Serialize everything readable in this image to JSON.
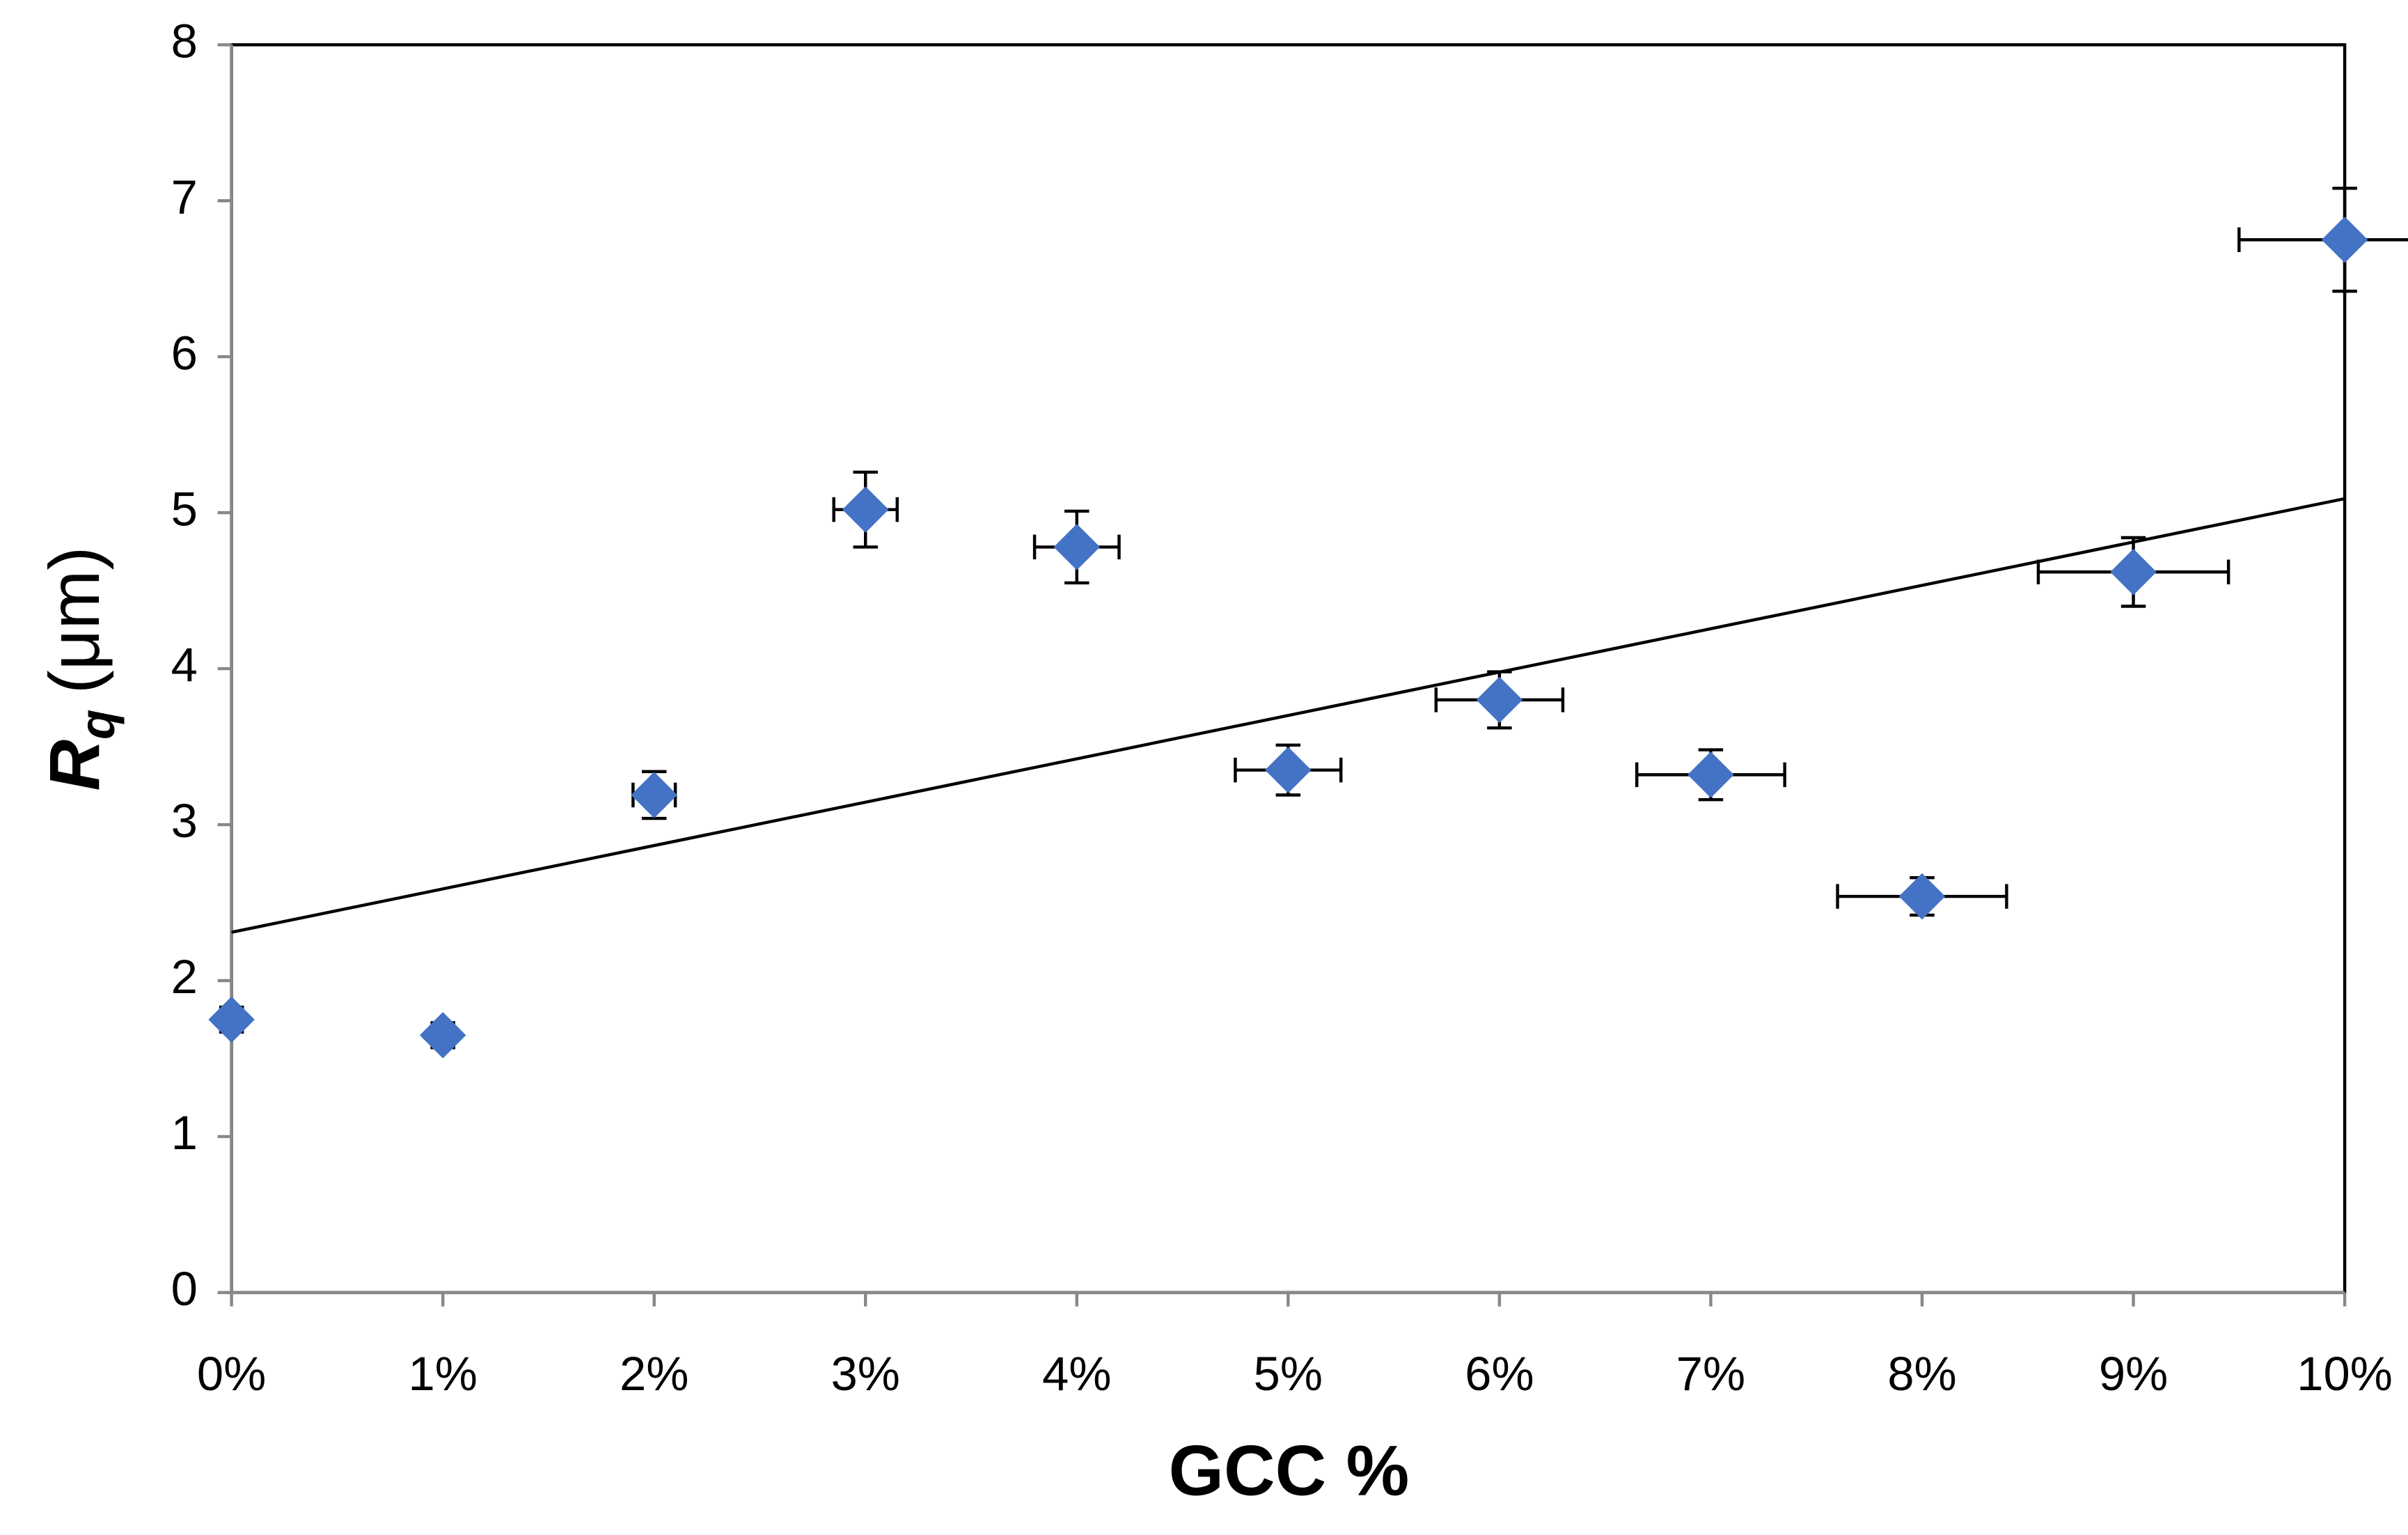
{
  "chart_data": {
    "type": "scatter",
    "x_label": "GCC %",
    "y_label": {
      "main": "R",
      "sub": "q",
      "unit": "(μm)"
    },
    "xlim": [
      0,
      10
    ],
    "ylim": [
      0,
      8
    ],
    "xticks": [
      {
        "value": 0,
        "label": "0%"
      },
      {
        "value": 1,
        "label": "1%"
      },
      {
        "value": 2,
        "label": "2%"
      },
      {
        "value": 3,
        "label": "3%"
      },
      {
        "value": 4,
        "label": "4%"
      },
      {
        "value": 5,
        "label": "5%"
      },
      {
        "value": 6,
        "label": "6%"
      },
      {
        "value": 7,
        "label": "7%"
      },
      {
        "value": 8,
        "label": "8%"
      },
      {
        "value": 9,
        "label": "9%"
      },
      {
        "value": 10,
        "label": "10%"
      }
    ],
    "yticks": [
      0,
      1,
      2,
      3,
      4,
      5,
      6,
      7,
      8
    ],
    "grid": false,
    "series": [
      {
        "color": "#4472c4",
        "x": [
          0,
          1,
          2,
          3,
          4,
          5,
          6,
          7,
          8,
          9,
          10
        ],
        "values": [
          1.75,
          1.65,
          3.19,
          5.02,
          4.78,
          3.35,
          3.8,
          3.32,
          2.54,
          4.62,
          6.75
        ],
        "y_err": [
          0.08,
          0.08,
          0.15,
          0.24,
          0.23,
          0.16,
          0.18,
          0.16,
          0.12,
          0.22,
          0.33
        ],
        "x_err": [
          0.05,
          0.05,
          0.1,
          0.15,
          0.2,
          0.25,
          0.3,
          0.35,
          0.4,
          0.45,
          0.5
        ]
      }
    ],
    "trendline": {
      "x": [
        0,
        10
      ],
      "values": [
        2.31,
        5.09
      ],
      "color": "#000000"
    }
  }
}
